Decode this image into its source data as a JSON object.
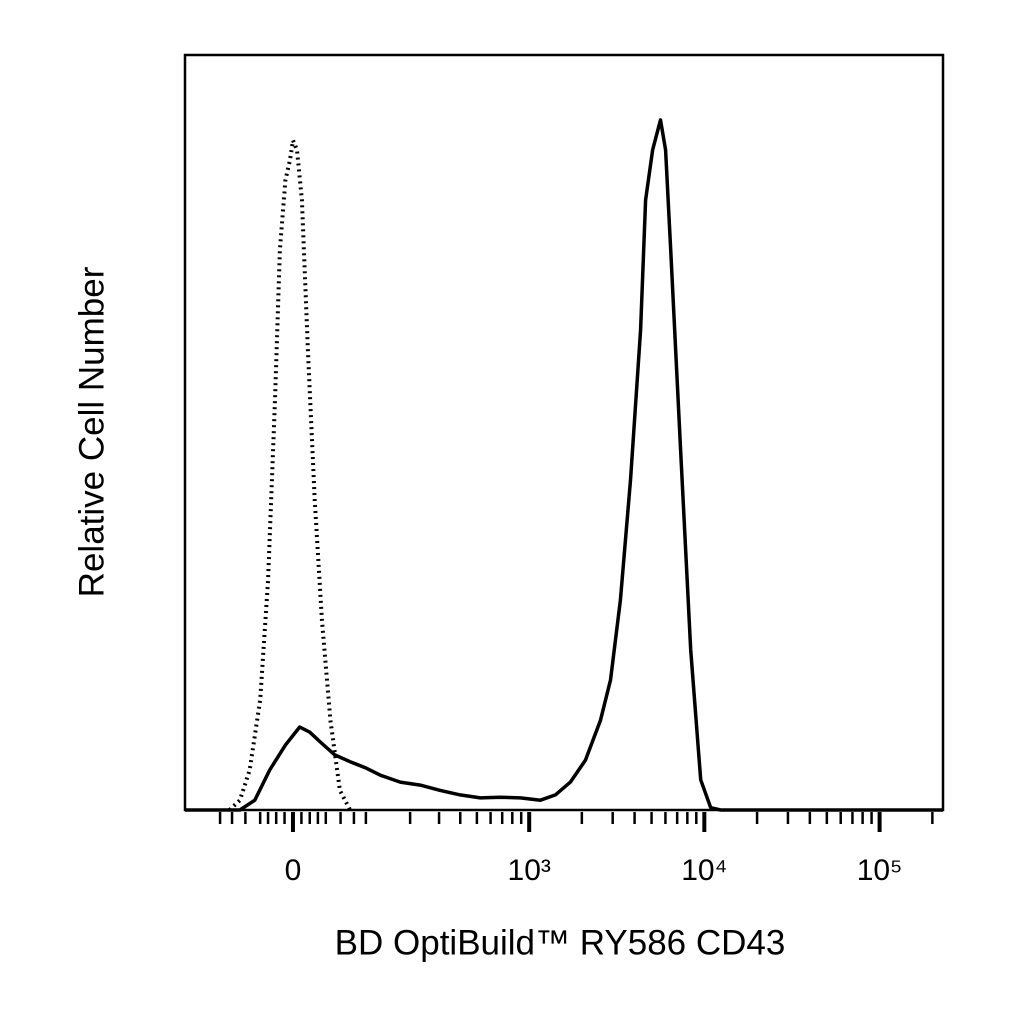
{
  "chart_data": {
    "type": "histogram-line",
    "xlabel": "BD OptiBuild™ RY586 CD43",
    "ylabel": "Relative Cell Number",
    "xscale": "biexponential",
    "xlim": [
      -175,
      230000
    ],
    "ylim": [
      0,
      100
    ],
    "xticks": [
      0,
      {
        "value": 1000,
        "label": "10³"
      },
      {
        "value": 10000,
        "label": "10⁴"
      },
      {
        "value": 100000,
        "label": "10⁵"
      }
    ],
    "xminorticks": [
      -100,
      -80,
      -60,
      -40,
      -30,
      -20,
      -10,
      10,
      20,
      30,
      40,
      60,
      80,
      100,
      200,
      300,
      400,
      500,
      600,
      700,
      800,
      900,
      2000,
      3000,
      4000,
      5000,
      6000,
      7000,
      8000,
      9000,
      20000,
      30000,
      40000,
      50000,
      60000,
      70000,
      80000,
      90000,
      200000
    ],
    "series": [
      {
        "color": "#000000",
        "line_style": "solid",
        "x": [
          -175,
          -68,
          -47,
          -28,
          -9,
          8,
          20,
          33,
          52,
          74,
          99,
          128,
          173,
          231,
          305,
          400,
          523,
          683,
          892,
          1159,
          1412,
          1721,
          2097,
          2556,
          2916,
          3321,
          3789,
          4329,
          4626,
          5067,
          5625,
          6012,
          6426,
          7326,
          8361,
          9531,
          10872,
          12402,
          230000
        ],
        "values": [
          0,
          0,
          1.3,
          5.3,
          8.6,
          11,
          10.3,
          9,
          7.3,
          6.4,
          5.6,
          4.6,
          3.7,
          3.3,
          2.6,
          2,
          1.6,
          1.7,
          1.6,
          1.3,
          2,
          3.7,
          6.6,
          11.9,
          17.2,
          27.8,
          43.7,
          63.6,
          80.8,
          87.4,
          91.4,
          87.4,
          74.2,
          47.7,
          21.2,
          4,
          0.3,
          0,
          0
        ]
      },
      {
        "color": "#000000",
        "line_style": "dotted",
        "x": [
          -84,
          -68,
          -54,
          -40,
          -30,
          -21.5,
          -15.5,
          -9,
          -3.5,
          0,
          4.7,
          10.6,
          17.8,
          26,
          35,
          46,
          59,
          74
        ],
        "values": [
          0,
          1.3,
          5.3,
          14.6,
          30.5,
          54.3,
          74.2,
          83.4,
          86.1,
          88.7,
          87.4,
          80.8,
          60.9,
          41.1,
          25.2,
          11.9,
          2.6,
          0
        ]
      }
    ]
  }
}
